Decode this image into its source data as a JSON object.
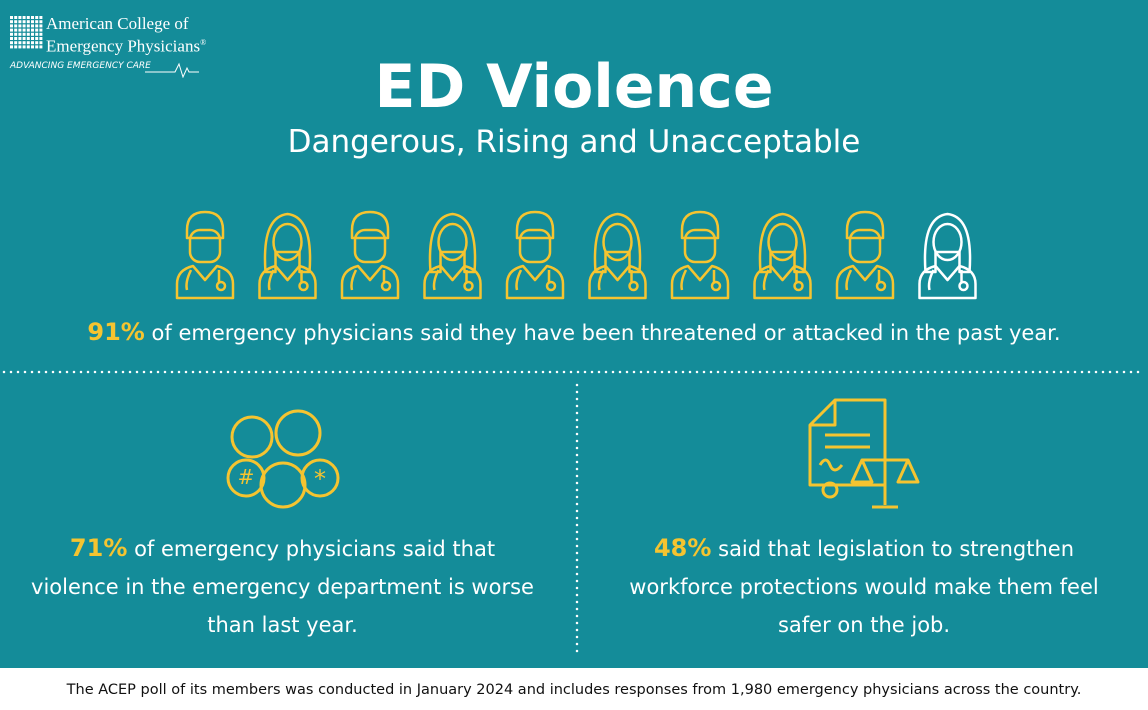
{
  "logo": {
    "name_line1": "American College of",
    "name_line2": "Emergency Physicians",
    "mark": "®",
    "tagline": "ADVANCING EMERGENCY CARE"
  },
  "header": {
    "title": "ED Violence",
    "subtitle": "Dangerous, Rising and Unacceptable"
  },
  "stats": [
    {
      "value": "91%",
      "lines": [
        "of emergency physicians said they have been threatened or attacked in the past year."
      ]
    },
    {
      "value": "71%",
      "lines": [
        "of emergency physicians said that",
        "violence in the emergency department is worse",
        "than last year."
      ]
    },
    {
      "value": "48%",
      "lines": [
        "said that legislation to strengthen",
        "workforce protections would make them feel",
        "safer on the job."
      ]
    }
  ],
  "footer": {
    "note": "The ACEP poll of its members was conducted in January 2024 and includes responses from 1,980 emergency physicians across the country."
  }
}
